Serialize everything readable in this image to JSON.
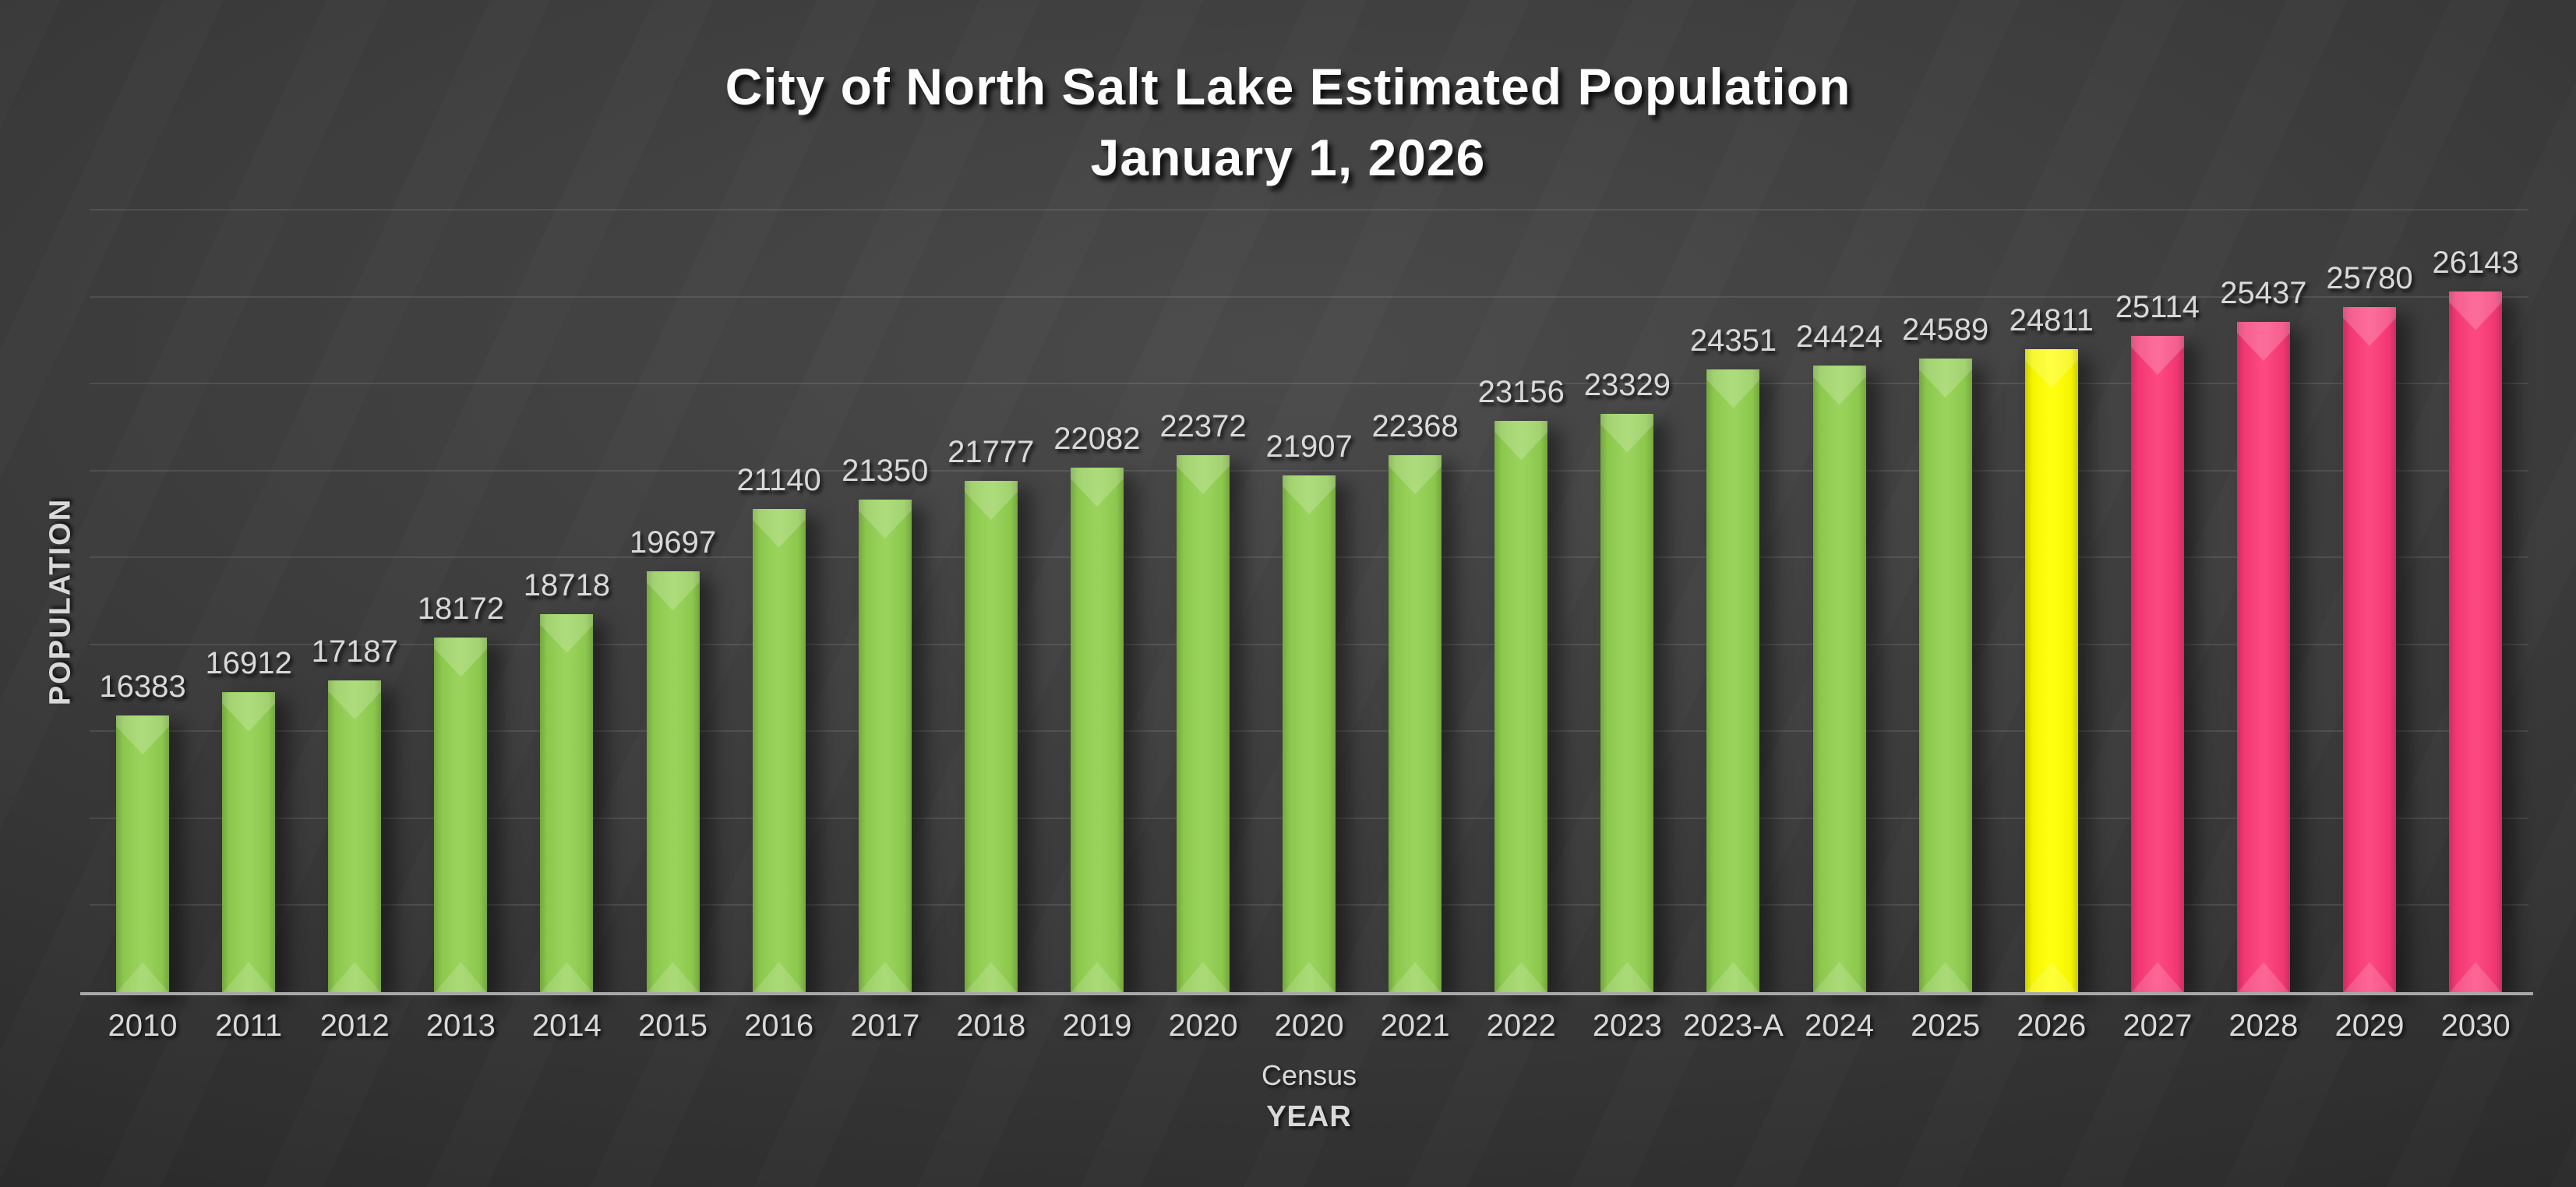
{
  "chart_data": {
    "type": "bar",
    "title": "City of North Salt Lake Estimated Population",
    "subtitle": "January 1, 2026",
    "xlabel": "YEAR",
    "ylabel": "POPULATION",
    "ylim": [
      10000,
      28000
    ],
    "gridline_step": 2000,
    "grid": "horizontal",
    "legend_position": "none",
    "y_tick_labels_visible": false,
    "colors": {
      "historical": "#92D050",
      "current_estimate": "#FFFF00",
      "projection": "#FC3A78",
      "label_text": "#D9D9D9",
      "title_text": "#FDFDFD",
      "axis_line": "#A8A8A8"
    },
    "bars": [
      {
        "label": "2010",
        "value": 16383,
        "group": "historical"
      },
      {
        "label": "2011",
        "value": 16912,
        "group": "historical"
      },
      {
        "label": "2012",
        "value": 17187,
        "group": "historical"
      },
      {
        "label": "2013",
        "value": 18172,
        "group": "historical"
      },
      {
        "label": "2014",
        "value": 18718,
        "group": "historical"
      },
      {
        "label": "2015",
        "value": 19697,
        "group": "historical"
      },
      {
        "label": "2016",
        "value": 21140,
        "group": "historical"
      },
      {
        "label": "2017",
        "value": 21350,
        "group": "historical"
      },
      {
        "label": "2018",
        "value": 21777,
        "group": "historical"
      },
      {
        "label": "2019",
        "value": 22082,
        "group": "historical"
      },
      {
        "label": "2020",
        "value": 22372,
        "group": "historical"
      },
      {
        "label": "2020",
        "sublabel": "Census",
        "value": 21907,
        "group": "historical"
      },
      {
        "label": "2021",
        "value": 22368,
        "group": "historical"
      },
      {
        "label": "2022",
        "value": 23156,
        "group": "historical"
      },
      {
        "label": "2023",
        "value": 23329,
        "group": "historical"
      },
      {
        "label": "2023-A",
        "value": 24351,
        "group": "historical"
      },
      {
        "label": "2024",
        "value": 24424,
        "group": "historical"
      },
      {
        "label": "2025",
        "value": 24589,
        "group": "historical"
      },
      {
        "label": "2026",
        "value": 24811,
        "group": "current_estimate"
      },
      {
        "label": "2027",
        "value": 25114,
        "group": "projection"
      },
      {
        "label": "2028",
        "value": 25437,
        "group": "projection"
      },
      {
        "label": "2029",
        "value": 25780,
        "group": "projection"
      },
      {
        "label": "2030",
        "value": 26143,
        "group": "projection"
      }
    ]
  }
}
